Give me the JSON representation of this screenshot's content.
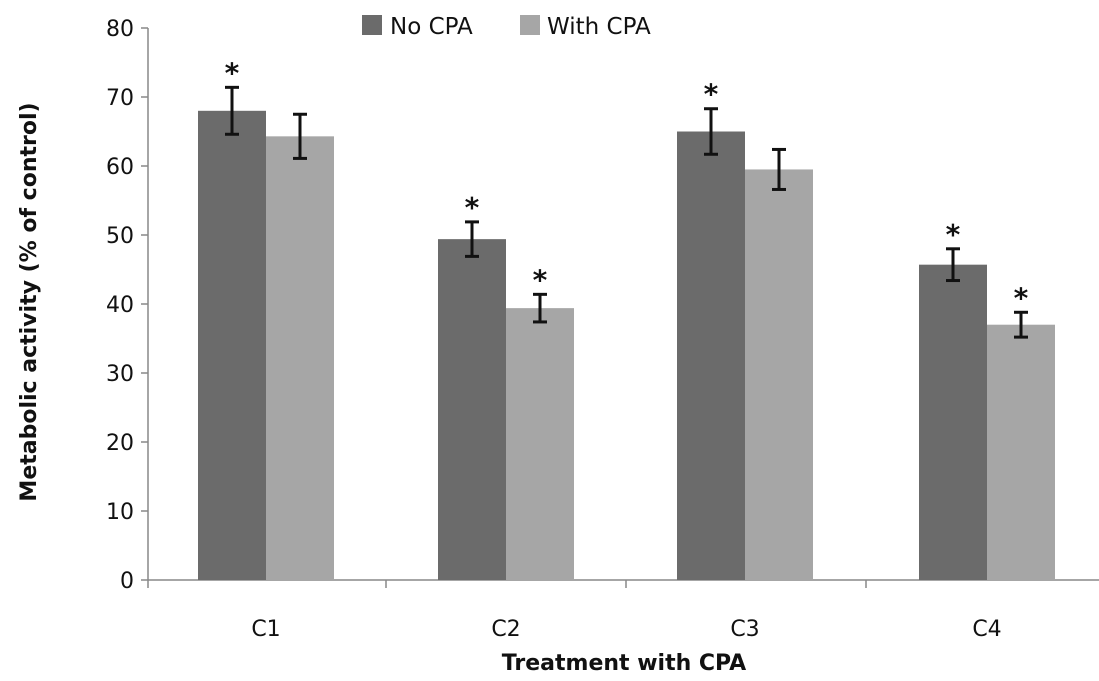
{
  "chart_data": {
    "type": "bar",
    "categories": [
      "C1",
      "C2",
      "C3",
      "C4"
    ],
    "series": [
      {
        "name": "No CPA",
        "values": [
          68,
          49.4,
          65,
          45.7
        ],
        "errors": [
          3.4,
          2.5,
          3.3,
          2.3
        ],
        "significance": [
          "*",
          "*",
          "*",
          "*"
        ]
      },
      {
        "name": "With CPA",
        "values": [
          64.3,
          39.4,
          59.5,
          37
        ],
        "errors": [
          3.2,
          2.0,
          2.9,
          1.8
        ],
        "significance": [
          "",
          "*",
          "",
          "*"
        ]
      }
    ],
    "xlabel": "Treatment with CPA",
    "ylabel": "Metabolic activity (% of control)",
    "ylim": [
      0,
      80
    ],
    "yticks": [
      0,
      10,
      20,
      30,
      40,
      50,
      60,
      70,
      80
    ],
    "legend_position": "top-center",
    "grid": false,
    "colors": {
      "No CPA": "#6b6b6b",
      "With CPA": "#a6a6a6",
      "axis": "#888888",
      "error_bar": "#111111"
    }
  }
}
